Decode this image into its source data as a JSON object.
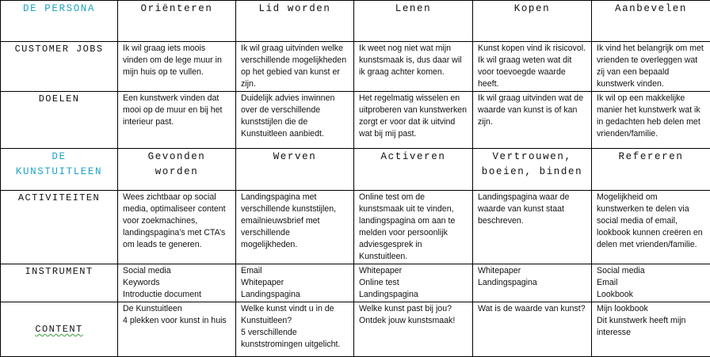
{
  "accent_color": "#1fa3c4",
  "rows": [
    {
      "type": "header",
      "label": "DE PERSONA",
      "cells": [
        [
          "Oriënteren"
        ],
        [
          "Lid worden"
        ],
        [
          "Lenen"
        ],
        [
          "Kopen"
        ],
        [
          "Aanbevelen"
        ]
      ]
    },
    {
      "type": "body",
      "label": "CUSTOMER JOBS",
      "cells": [
        [
          "Ik wil graag iets moois vinden om de lege muur in mijn huis op te vullen."
        ],
        [
          "Ik wil graag uitvinden welke verschillende mogelijkheden op het gebied van kunst er zijn."
        ],
        [
          "Ik weet nog niet wat mijn kunstsmaak is, dus daar wil ik graag achter komen."
        ],
        [
          "Kunst kopen vind ik risicovol. Ik wil graag weten wat dit voor toevoegde waarde heeft."
        ],
        [
          "Ik vind het belangrijk om met vrienden te overleggen wat zij van een bepaald kunstwerk vinden."
        ]
      ]
    },
    {
      "type": "body",
      "label": "DOELEN",
      "cells": [
        [
          "Een kunstwerk vinden dat mooi op de muur en bij het interieur past."
        ],
        [
          "Duidelijk advies inwinnen over de verschillende kunststijlen die de Kunstuitleen aanbiedt."
        ],
        [
          "Het regelmatig wisselen en uitproberen van kunstwerken zorgt er voor dat ik uitvind wat bij mij past."
        ],
        [
          "Ik wil graag uitvinden wat de waarde van kunst is of kan zijn."
        ],
        [
          "Ik wil op een makkelijke manier het kunstwerk wat ik in gedachten heb delen met vrienden/familie."
        ]
      ]
    },
    {
      "type": "header",
      "label": "DE KUNSTUITLEEN",
      "cells": [
        [
          "Gevonden worden"
        ],
        [
          "Werven"
        ],
        [
          "Activeren"
        ],
        [
          "Vertrouwen, boeien, binden"
        ],
        [
          "Refereren"
        ]
      ]
    },
    {
      "type": "body",
      "label": "ACTIVITEITEN",
      "cells": [
        [
          "Wees zichtbaar op social media, optimaliseer content voor zoekmachines, landingspagina’s met CTA’s om leads te generen."
        ],
        [
          "Landingspagina met verschillende kunststijlen, emailnieuwsbrief met verschillende mogelijkheden."
        ],
        [
          "Online test om de kunstsmaak uit te vinden, landingspagina om aan te melden voor persoonlijk adviesgesprek in Kunstuitleen."
        ],
        [
          "Landingspagina waar de waarde van kunst staat beschreven."
        ],
        [
          "Mogelijkheid om kunstwerken te delen via social media of email, lookbook kunnen creëren en delen met vrienden/familie."
        ]
      ]
    },
    {
      "type": "body",
      "label": "INSTRUMENT",
      "cells": [
        [
          "Social media",
          "Keywords",
          "Introductie document"
        ],
        [
          "Email",
          "Whitepaper",
          "Landingspagina"
        ],
        [
          "Whitepaper",
          "Online test",
          "Landingspagina"
        ],
        [
          "Whitepaper",
          "Landingspagina"
        ],
        [
          "Social media",
          "Email",
          "Lookbook"
        ]
      ]
    },
    {
      "type": "body",
      "label": "CONTENT",
      "cells": [
        [
          "De Kunstuitleen",
          "4 plekken voor kunst in huis"
        ],
        [
          "Welke kunst vindt u in de Kunstuitleen?",
          "5 verschillende kunststromingen uitgelicht."
        ],
        [
          "Welke kunst past bij jou?",
          "Ontdek jouw kunstsmaak!"
        ],
        [
          "Wat is de waarde van kunst?"
        ],
        [
          "Mijn lookbook",
          "Dit kunstwerk heeft mijn interesse"
        ]
      ]
    }
  ]
}
